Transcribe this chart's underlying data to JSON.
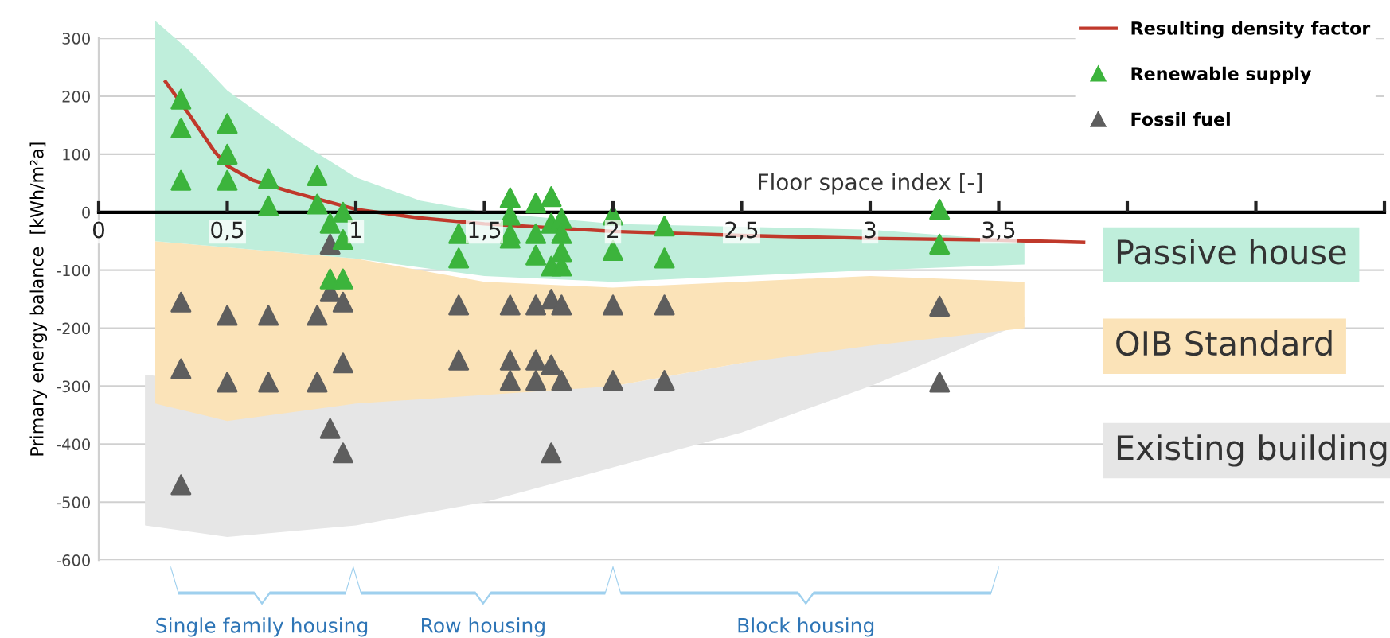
{
  "chart_data": {
    "type": "scatter",
    "xlabel": "Floor space index [-]",
    "ylabel": "Primary energy balance  [kWh/m²a]",
    "xlim": [
      0,
      5
    ],
    "ylim": [
      -600,
      300
    ],
    "xticks": [
      0,
      {
        "value": 0.5,
        "label": "0,5"
      },
      1,
      {
        "value": 1.5,
        "label": "1,5"
      },
      2,
      {
        "value": 2.5,
        "label": "2,5"
      },
      3,
      {
        "value": 3.5,
        "label": "3,5"
      },
      {
        "value": 4,
        "label": null
      },
      {
        "value": 4.5,
        "label": null
      },
      {
        "value": 5,
        "label": null
      }
    ],
    "yticks": [
      300,
      200,
      100,
      0,
      -100,
      -200,
      -300,
      -400,
      -500,
      -600
    ],
    "grid": "y",
    "legend": "top right",
    "marker": "triangle",
    "series": [
      {
        "name": "Fossil fuel",
        "color": "#5e5e5e",
        "x": [
          0.32,
          0.32,
          0.32,
          0.5,
          0.5,
          0.66,
          0.66,
          0.85,
          0.85,
          0.9,
          0.9,
          0.9,
          0.95,
          0.95,
          0.95,
          1.4,
          1.4,
          1.6,
          1.6,
          1.6,
          1.7,
          1.7,
          1.7,
          1.76,
          1.76,
          1.76,
          1.8,
          1.8,
          2.0,
          2.0,
          2.2,
          2.2,
          3.27,
          3.27
        ],
        "values": [
          -155,
          -270,
          -470,
          -178,
          -293,
          -178,
          -293,
          -178,
          -293,
          -55,
          -137,
          -373,
          -155,
          -260,
          -415,
          -160,
          -255,
          -160,
          -255,
          -290,
          -160,
          -255,
          -290,
          -150,
          -263,
          -415,
          -160,
          -290,
          -160,
          -290,
          -160,
          -290,
          -162,
          -293
        ]
      },
      {
        "name": "Renewable supply",
        "color": "#3cb43c",
        "x": [
          0.32,
          0.32,
          0.32,
          0.5,
          0.5,
          0.5,
          0.66,
          0.66,
          0.85,
          0.85,
          0.9,
          0.9,
          0.95,
          0.95,
          0.95,
          1.4,
          1.4,
          1.6,
          1.6,
          1.6,
          1.6,
          1.7,
          1.7,
          1.7,
          1.76,
          1.76,
          1.76,
          1.8,
          1.8,
          1.8,
          1.8,
          2.0,
          2.0,
          2.2,
          2.2,
          3.27,
          3.27
        ],
        "values": [
          195,
          145,
          55,
          153,
          100,
          55,
          58,
          11,
          63,
          14,
          -19,
          -115,
          0,
          -47,
          -115,
          -37,
          -79,
          25,
          -5,
          -37,
          -45,
          16,
          -37,
          -74,
          27,
          -19,
          -93,
          -11,
          -37,
          -68,
          -93,
          -5,
          -66,
          -24,
          -79,
          5,
          -55
        ]
      },
      {
        "name": "Resulting density factor",
        "type": "line",
        "marker": "none",
        "line_style": "solid",
        "color": "#c0392b",
        "x": [
          0.26,
          0.35,
          0.45,
          0.5,
          0.6,
          0.75,
          1.0,
          1.25,
          1.5,
          2.0,
          2.5,
          3.0,
          3.5,
          3.83
        ],
        "values": [
          225,
          170,
          105,
          80,
          55,
          35,
          5,
          -10,
          -20,
          -33,
          -40,
          -45,
          -48,
          -52
        ]
      }
    ],
    "annotations": [
      "Passive house",
      "OIB Standard",
      "Existing building",
      "Single family housing",
      "Row housing",
      "Block housing"
    ]
  }
}
